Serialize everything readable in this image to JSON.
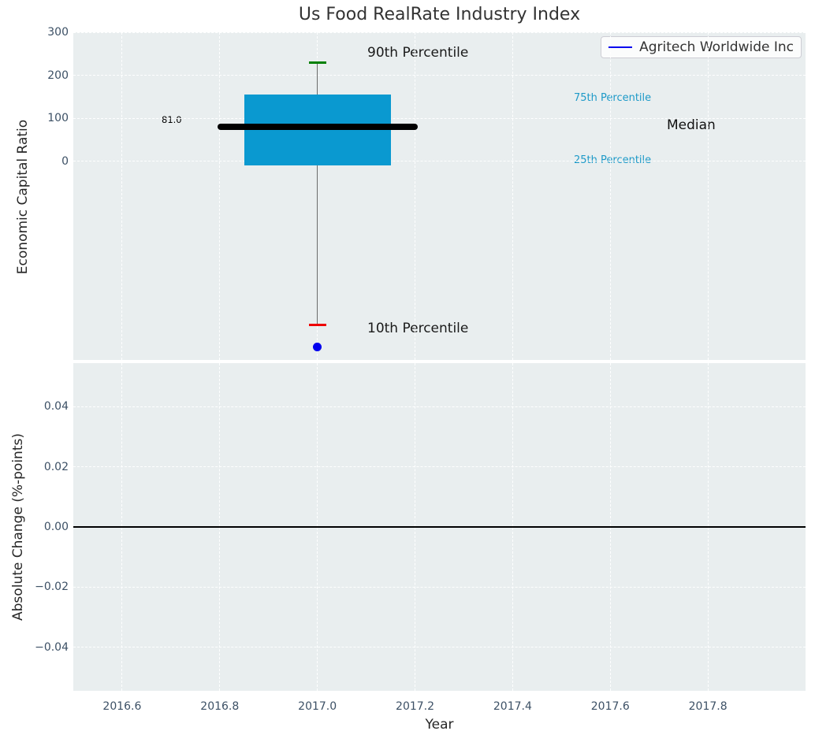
{
  "title": "Us Food RealRate Industry Index",
  "xlabel": "Year",
  "legend": {
    "label": "Agritech Worldwide Inc"
  },
  "top_chart": {
    "ylabel": "Economic Capital Ratio",
    "median_value_label": "81.0",
    "labels": {
      "p90": "90th Percentile",
      "p75": "75th Percentile",
      "median": "Median",
      "p25": "25th Percentile",
      "p10": "10th Percentile"
    }
  },
  "bottom_chart": {
    "ylabel": "Absolute Change (%-points)"
  },
  "colors": {
    "box_fill": "#0a99d0",
    "median_line": "#000000",
    "p90_cap": "#008000",
    "p10_cap": "#ee0000",
    "company_point": "#0000ee",
    "percentile_text": "#1e9ac8",
    "axes_background": "#e9eeef",
    "tick_text": "#3c5065",
    "whisker": "#6b6b6b",
    "zero_line": "#000000"
  },
  "chart_data": [
    {
      "type": "box",
      "title": "Us Food RealRate Industry Index",
      "xlabel": "Year",
      "ylabel": "Economic Capital Ratio",
      "xlim": [
        2016.5,
        2018.0
      ],
      "ylim": [
        -461,
        300
      ],
      "xticks": [
        2016.6,
        2016.8,
        2017.0,
        2017.2,
        2017.4,
        2017.6,
        2017.8
      ],
      "yticks": [
        0,
        100,
        200,
        300
      ],
      "grid": true,
      "legend_entries": [
        "Agritech Worldwide Inc"
      ],
      "legend_position": "upper right",
      "box": {
        "x": 2017.0,
        "box_left": 2016.85,
        "box_right": 2017.15,
        "median_left": 2016.795,
        "median_right": 2017.205,
        "cap_halfwidth_years": 0.018,
        "p10": -380,
        "p25": -10,
        "median": 81,
        "p75": 155,
        "p90": 230
      },
      "company_point": {
        "name": "Agritech Worldwide Inc",
        "x": 2017.0,
        "y": -430
      },
      "annotations": [
        "81.0",
        "90th Percentile",
        "75th Percentile",
        "Median",
        "25th Percentile",
        "10th Percentile"
      ]
    },
    {
      "type": "line",
      "xlabel": "Year",
      "ylabel": "Absolute Change (%-points)",
      "xlim": [
        2016.5,
        2018.0
      ],
      "ylim": [
        -0.0545,
        0.0545
      ],
      "xticks": [
        2016.6,
        2016.8,
        2017.0,
        2017.2,
        2017.4,
        2017.6,
        2017.8
      ],
      "yticks": [
        -0.04,
        -0.02,
        0.0,
        0.02,
        0.04
      ],
      "grid": true,
      "zero_line": 0.0
    }
  ]
}
